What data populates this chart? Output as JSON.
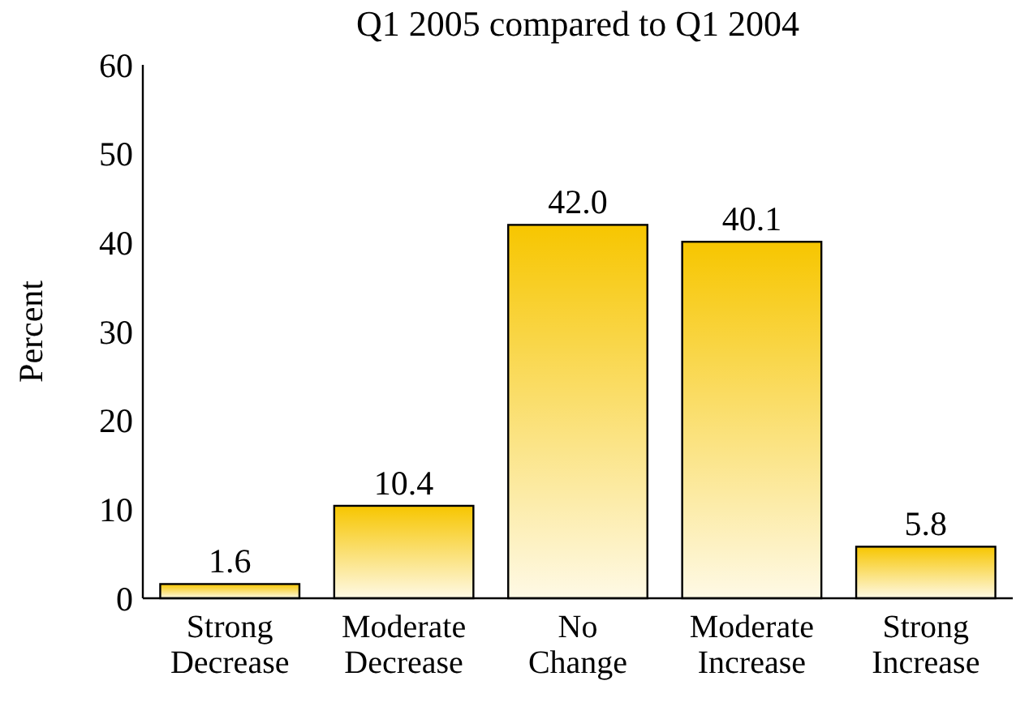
{
  "chart_data": {
    "type": "bar",
    "title": "Q1 2005 compared to Q1 2004",
    "ylabel": "Percent",
    "categories": [
      "Strong\nDecrease",
      "Moderate\nDecrease",
      "No\nChange",
      "Moderate\nIncrease",
      "Strong\nIncrease"
    ],
    "values": [
      1.6,
      10.4,
      42.0,
      40.1,
      5.8
    ],
    "value_labels": [
      "1.6",
      "10.4",
      "42.0",
      "40.1",
      "5.8"
    ],
    "color": "#f7c600",
    "ylim": [
      0,
      60
    ],
    "yticks": [
      0,
      10,
      20,
      30,
      40,
      50,
      60
    ],
    "grid": false
  }
}
